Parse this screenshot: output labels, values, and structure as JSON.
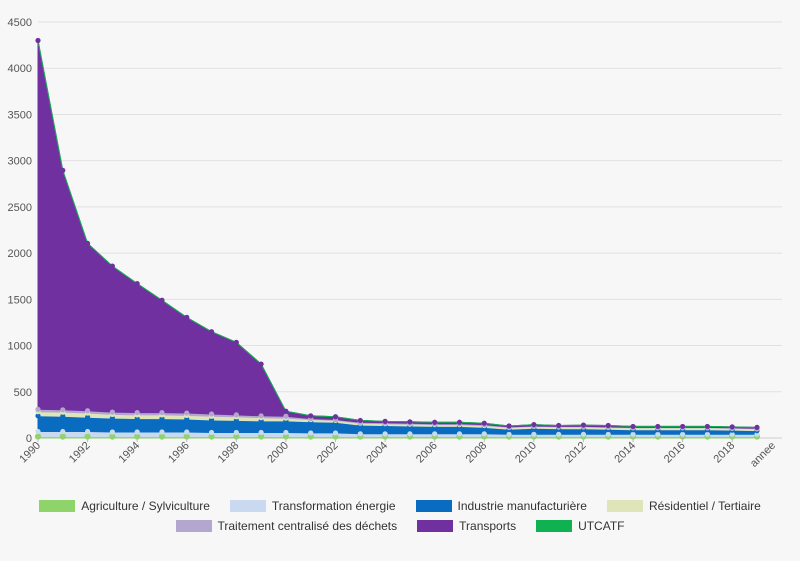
{
  "chart_data": {
    "type": "area",
    "stacked": true,
    "xlabel": "annee",
    "ylabel": "",
    "ylim": [
      0,
      4500
    ],
    "yticks": [
      0,
      500,
      1000,
      1500,
      2000,
      2500,
      3000,
      3500,
      4000,
      4500
    ],
    "xticks": [
      1990,
      1992,
      1994,
      1996,
      1998,
      2000,
      2002,
      2004,
      2006,
      2008,
      2010,
      2012,
      2014,
      2016,
      2018
    ],
    "grid": true,
    "legend_position": "bottom",
    "x": [
      1990,
      1991,
      1992,
      1993,
      1994,
      1995,
      1996,
      1997,
      1998,
      1999,
      2000,
      2001,
      2002,
      2003,
      2004,
      2005,
      2006,
      2007,
      2008,
      2009,
      2010,
      2011,
      2012,
      2013,
      2014,
      2015,
      2016,
      2017,
      2018,
      2019
    ],
    "series": [
      {
        "name": "Agriculture / Sylviculture",
        "color": "#8fd36b",
        "values": [
          15,
          15,
          15,
          15,
          15,
          15,
          15,
          15,
          15,
          15,
          15,
          15,
          15,
          15,
          15,
          15,
          15,
          15,
          15,
          15,
          15,
          15,
          15,
          15,
          15,
          15,
          15,
          15,
          15,
          15
        ]
      },
      {
        "name": "Transformation énergie",
        "color": "#c9daf0",
        "values": [
          55,
          55,
          55,
          50,
          50,
          50,
          50,
          45,
          45,
          45,
          45,
          40,
          40,
          30,
          30,
          30,
          30,
          30,
          30,
          25,
          25,
          25,
          25,
          25,
          25,
          25,
          25,
          25,
          25,
          25
        ]
      },
      {
        "name": "Industrie manufacturière",
        "color": "#0a6cc0",
        "values": [
          170,
          165,
          155,
          150,
          145,
          145,
          140,
          135,
          130,
          125,
          125,
          120,
          115,
          95,
          90,
          85,
          80,
          80,
          70,
          55,
          65,
          60,
          60,
          55,
          50,
          50,
          50,
          50,
          45,
          40
        ]
      },
      {
        "name": "Résidentiel / Tertiaire",
        "color": "#dfe5b8",
        "values": [
          45,
          45,
          45,
          40,
          40,
          40,
          40,
          40,
          40,
          35,
          30,
          25,
          20,
          20,
          20,
          20,
          20,
          20,
          20,
          20,
          20,
          20,
          20,
          20,
          20,
          20,
          20,
          20,
          20,
          20
        ]
      },
      {
        "name": "Traitement centralisé des déchets",
        "color": "#b3a6cf",
        "values": [
          25,
          25,
          25,
          25,
          25,
          25,
          25,
          25,
          20,
          20,
          20,
          10,
          10,
          10,
          10,
          10,
          10,
          10,
          10,
          5,
          5,
          5,
          5,
          5,
          5,
          5,
          5,
          5,
          5,
          5
        ]
      },
      {
        "name": "Transports",
        "color": "#7030a0",
        "values": [
          3990,
          2590,
          1810,
          1580,
          1395,
          1215,
          1035,
          890,
          785,
          560,
          55,
          30,
          30,
          20,
          15,
          15,
          15,
          15,
          15,
          10,
          15,
          10,
          15,
          15,
          10,
          10,
          10,
          10,
          10,
          10
        ]
      },
      {
        "name": "UTCATF",
        "color": "#0fb150",
        "values": [
          0,
          0,
          0,
          0,
          0,
          0,
          0,
          0,
          0,
          0,
          0,
          0,
          0,
          0,
          0,
          0,
          0,
          0,
          0,
          0,
          0,
          0,
          0,
          0,
          0,
          0,
          0,
          0,
          0,
          0
        ]
      }
    ]
  }
}
